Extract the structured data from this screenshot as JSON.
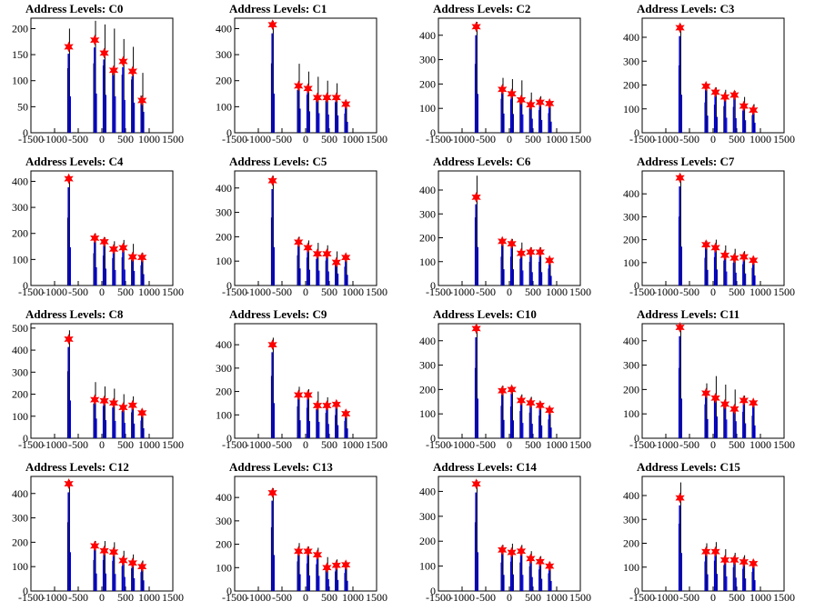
{
  "chart_data": [
    {
      "type": "histogram",
      "title": "Address Levels: C0",
      "xlim": [
        -1500,
        1500
      ],
      "xticks": [
        -1500,
        -1000,
        -500,
        0,
        500,
        1000,
        1500
      ],
      "ylim": [
        0,
        220
      ],
      "yticks": [
        0,
        50,
        100,
        150,
        200
      ],
      "peaks": [
        {
          "x": -700,
          "y": 200,
          "fit": 165
        },
        {
          "x": -150,
          "y": 215,
          "fit": 178
        },
        {
          "x": 50,
          "y": 208,
          "fit": 153
        },
        {
          "x": 250,
          "y": 200,
          "fit": 120
        },
        {
          "x": 450,
          "y": 180,
          "fit": 137
        },
        {
          "x": 650,
          "y": 165,
          "fit": 118
        },
        {
          "x": 850,
          "y": 115,
          "fit": 62
        }
      ]
    },
    {
      "type": "histogram",
      "title": "Address Levels: C1",
      "xlim": [
        -1500,
        1500
      ],
      "xticks": [
        -1500,
        -1000,
        -500,
        0,
        500,
        1000,
        1500
      ],
      "ylim": [
        0,
        440
      ],
      "yticks": [
        0,
        100,
        200,
        300,
        400
      ],
      "peaks": [
        {
          "x": -700,
          "y": 430,
          "fit": 415
        },
        {
          "x": -150,
          "y": 265,
          "fit": 180
        },
        {
          "x": 50,
          "y": 235,
          "fit": 170
        },
        {
          "x": 250,
          "y": 215,
          "fit": 135
        },
        {
          "x": 450,
          "y": 200,
          "fit": 135
        },
        {
          "x": 650,
          "y": 190,
          "fit": 135
        },
        {
          "x": 850,
          "y": 120,
          "fit": 110
        }
      ]
    },
    {
      "type": "histogram",
      "title": "Address Levels: C2",
      "xlim": [
        -1500,
        1500
      ],
      "xticks": [
        -1500,
        -1000,
        -500,
        0,
        500,
        1000,
        1500
      ],
      "ylim": [
        0,
        470
      ],
      "yticks": [
        0,
        100,
        200,
        300,
        400
      ],
      "peaks": [
        {
          "x": -700,
          "y": 455,
          "fit": 435
        },
        {
          "x": -150,
          "y": 225,
          "fit": 178
        },
        {
          "x": 50,
          "y": 220,
          "fit": 160
        },
        {
          "x": 250,
          "y": 215,
          "fit": 135
        },
        {
          "x": 450,
          "y": 165,
          "fit": 115
        },
        {
          "x": 650,
          "y": 150,
          "fit": 125
        },
        {
          "x": 850,
          "y": 130,
          "fit": 120
        }
      ]
    },
    {
      "type": "histogram",
      "title": "Address Levels: C3",
      "xlim": [
        -1500,
        1500
      ],
      "xticks": [
        -1500,
        -1000,
        -500,
        0,
        500,
        1000,
        1500
      ],
      "ylim": [
        0,
        480
      ],
      "yticks": [
        0,
        100,
        200,
        300,
        400
      ],
      "peaks": [
        {
          "x": -700,
          "y": 455,
          "fit": 440
        },
        {
          "x": -150,
          "y": 205,
          "fit": 195
        },
        {
          "x": 50,
          "y": 190,
          "fit": 170
        },
        {
          "x": 250,
          "y": 180,
          "fit": 150
        },
        {
          "x": 450,
          "y": 175,
          "fit": 158
        },
        {
          "x": 650,
          "y": 150,
          "fit": 112
        },
        {
          "x": 850,
          "y": 120,
          "fit": 95
        }
      ]
    },
    {
      "type": "histogram",
      "title": "Address Levels: C4",
      "xlim": [
        -1500,
        1500
      ],
      "xticks": [
        -1500,
        -1000,
        -500,
        0,
        500,
        1000,
        1500
      ],
      "ylim": [
        0,
        440
      ],
      "yticks": [
        0,
        100,
        200,
        300,
        400
      ],
      "peaks": [
        {
          "x": -700,
          "y": 420,
          "fit": 410
        },
        {
          "x": -150,
          "y": 200,
          "fit": 182
        },
        {
          "x": 50,
          "y": 185,
          "fit": 168
        },
        {
          "x": 250,
          "y": 170,
          "fit": 140
        },
        {
          "x": 450,
          "y": 175,
          "fit": 145
        },
        {
          "x": 650,
          "y": 160,
          "fit": 110
        },
        {
          "x": 850,
          "y": 125,
          "fit": 108
        }
      ]
    },
    {
      "type": "histogram",
      "title": "Address Levels: C5",
      "xlim": [
        -1500,
        1500
      ],
      "xticks": [
        -1500,
        -1000,
        -500,
        0,
        500,
        1000,
        1500
      ],
      "ylim": [
        0,
        470
      ],
      "yticks": [
        0,
        100,
        200,
        300,
        400
      ],
      "peaks": [
        {
          "x": -700,
          "y": 450,
          "fit": 430
        },
        {
          "x": -150,
          "y": 200,
          "fit": 178
        },
        {
          "x": 50,
          "y": 185,
          "fit": 155
        },
        {
          "x": 250,
          "y": 175,
          "fit": 130
        },
        {
          "x": 450,
          "y": 165,
          "fit": 130
        },
        {
          "x": 650,
          "y": 140,
          "fit": 95
        },
        {
          "x": 850,
          "y": 125,
          "fit": 115
        }
      ]
    },
    {
      "type": "histogram",
      "title": "Address Levels: C6",
      "xlim": [
        -1500,
        1500
      ],
      "xticks": [
        -1500,
        -1000,
        -500,
        0,
        500,
        1000,
        1500
      ],
      "ylim": [
        0,
        480
      ],
      "yticks": [
        0,
        100,
        200,
        300,
        400
      ],
      "peaks": [
        {
          "x": -700,
          "y": 460,
          "fit": 370
        },
        {
          "x": -150,
          "y": 195,
          "fit": 185
        },
        {
          "x": 50,
          "y": 195,
          "fit": 175
        },
        {
          "x": 250,
          "y": 180,
          "fit": 135
        },
        {
          "x": 450,
          "y": 160,
          "fit": 140
        },
        {
          "x": 650,
          "y": 160,
          "fit": 140
        },
        {
          "x": 850,
          "y": 115,
          "fit": 105
        }
      ]
    },
    {
      "type": "histogram",
      "title": "Address Levels: C7",
      "xlim": [
        -1500,
        1500
      ],
      "xticks": [
        -1500,
        -1000,
        -500,
        0,
        500,
        1000,
        1500
      ],
      "ylim": [
        0,
        500
      ],
      "yticks": [
        0,
        100,
        200,
        300,
        400
      ],
      "peaks": [
        {
          "x": -700,
          "y": 485,
          "fit": 470
        },
        {
          "x": -150,
          "y": 195,
          "fit": 178
        },
        {
          "x": 50,
          "y": 200,
          "fit": 165
        },
        {
          "x": 250,
          "y": 175,
          "fit": 132
        },
        {
          "x": 450,
          "y": 160,
          "fit": 120
        },
        {
          "x": 650,
          "y": 150,
          "fit": 125
        },
        {
          "x": 850,
          "y": 125,
          "fit": 110
        }
      ]
    },
    {
      "type": "histogram",
      "title": "Address Levels: C8",
      "xlim": [
        -1500,
        1500
      ],
      "xticks": [
        -1500,
        -1000,
        -500,
        0,
        500,
        1000,
        1500
      ],
      "ylim": [
        0,
        520
      ],
      "yticks": [
        0,
        100,
        200,
        300,
        400,
        500
      ],
      "peaks": [
        {
          "x": -700,
          "y": 490,
          "fit": 450
        },
        {
          "x": -150,
          "y": 255,
          "fit": 175
        },
        {
          "x": 50,
          "y": 235,
          "fit": 170
        },
        {
          "x": 250,
          "y": 225,
          "fit": 160
        },
        {
          "x": 450,
          "y": 200,
          "fit": 140
        },
        {
          "x": 650,
          "y": 190,
          "fit": 150
        },
        {
          "x": 850,
          "y": 130,
          "fit": 115
        }
      ]
    },
    {
      "type": "histogram",
      "title": "Address Levels: C9",
      "xlim": [
        -1500,
        1500
      ],
      "xticks": [
        -1500,
        -1000,
        -500,
        0,
        500,
        1000,
        1500
      ],
      "ylim": [
        0,
        490
      ],
      "yticks": [
        0,
        100,
        200,
        300,
        400
      ],
      "peaks": [
        {
          "x": -700,
          "y": 430,
          "fit": 400
        },
        {
          "x": -150,
          "y": 220,
          "fit": 185
        },
        {
          "x": 50,
          "y": 210,
          "fit": 185
        },
        {
          "x": 250,
          "y": 200,
          "fit": 140
        },
        {
          "x": 450,
          "y": 175,
          "fit": 140
        },
        {
          "x": 650,
          "y": 160,
          "fit": 145
        },
        {
          "x": 850,
          "y": 120,
          "fit": 105
        }
      ]
    },
    {
      "type": "histogram",
      "title": "Address Levels: C10",
      "xlim": [
        -1500,
        1500
      ],
      "xticks": [
        -1500,
        -1000,
        -500,
        0,
        500,
        1000,
        1500
      ],
      "ylim": [
        0,
        470
      ],
      "yticks": [
        0,
        100,
        200,
        300,
        400
      ],
      "peaks": [
        {
          "x": -700,
          "y": 465,
          "fit": 450
        },
        {
          "x": -150,
          "y": 215,
          "fit": 195
        },
        {
          "x": 50,
          "y": 210,
          "fit": 200
        },
        {
          "x": 250,
          "y": 180,
          "fit": 155
        },
        {
          "x": 450,
          "y": 170,
          "fit": 145
        },
        {
          "x": 650,
          "y": 150,
          "fit": 135
        },
        {
          "x": 850,
          "y": 125,
          "fit": 115
        }
      ]
    },
    {
      "type": "histogram",
      "title": "Address Levels: C11",
      "xlim": [
        -1500,
        1500
      ],
      "xticks": [
        -1500,
        -1000,
        -500,
        0,
        500,
        1000,
        1500
      ],
      "ylim": [
        0,
        470
      ],
      "yticks": [
        0,
        100,
        200,
        300,
        400
      ],
      "peaks": [
        {
          "x": -700,
          "y": 465,
          "fit": 455
        },
        {
          "x": -150,
          "y": 225,
          "fit": 185
        },
        {
          "x": 50,
          "y": 255,
          "fit": 165
        },
        {
          "x": 250,
          "y": 220,
          "fit": 140
        },
        {
          "x": 450,
          "y": 200,
          "fit": 120
        },
        {
          "x": 650,
          "y": 175,
          "fit": 155
        },
        {
          "x": 850,
          "y": 150,
          "fit": 145
        }
      ]
    },
    {
      "type": "histogram",
      "title": "Address Levels: C12",
      "xlim": [
        -1500,
        1500
      ],
      "xticks": [
        -1500,
        -1000,
        -500,
        0,
        500,
        1000,
        1500
      ],
      "ylim": [
        0,
        470
      ],
      "yticks": [
        0,
        100,
        200,
        300,
        400
      ],
      "peaks": [
        {
          "x": -700,
          "y": 455,
          "fit": 440
        },
        {
          "x": -150,
          "y": 205,
          "fit": 185
        },
        {
          "x": 50,
          "y": 205,
          "fit": 165
        },
        {
          "x": 250,
          "y": 200,
          "fit": 160
        },
        {
          "x": 450,
          "y": 165,
          "fit": 125
        },
        {
          "x": 650,
          "y": 150,
          "fit": 115
        },
        {
          "x": 850,
          "y": 125,
          "fit": 100
        }
      ]
    },
    {
      "type": "histogram",
      "title": "Address Levels: C13",
      "xlim": [
        -1500,
        1500
      ],
      "xticks": [
        -1500,
        -1000,
        -500,
        0,
        500,
        1000,
        1500
      ],
      "ylim": [
        0,
        490
      ],
      "yticks": [
        0,
        100,
        200,
        300,
        400
      ],
      "peaks": [
        {
          "x": -700,
          "y": 440,
          "fit": 420
        },
        {
          "x": -150,
          "y": 205,
          "fit": 170
        },
        {
          "x": 50,
          "y": 190,
          "fit": 170
        },
        {
          "x": 250,
          "y": 185,
          "fit": 155
        },
        {
          "x": 450,
          "y": 145,
          "fit": 100
        },
        {
          "x": 650,
          "y": 135,
          "fit": 110
        },
        {
          "x": 850,
          "y": 125,
          "fit": 112
        }
      ]
    },
    {
      "type": "histogram",
      "title": "Address Levels: C14",
      "xlim": [
        -1500,
        1500
      ],
      "xticks": [
        -1500,
        -1000,
        -500,
        0,
        500,
        1000,
        1500
      ],
      "ylim": [
        0,
        460
      ],
      "yticks": [
        0,
        100,
        200,
        300,
        400
      ],
      "peaks": [
        {
          "x": -700,
          "y": 445,
          "fit": 430
        },
        {
          "x": -150,
          "y": 185,
          "fit": 165
        },
        {
          "x": 50,
          "y": 190,
          "fit": 155
        },
        {
          "x": 250,
          "y": 185,
          "fit": 160
        },
        {
          "x": 450,
          "y": 160,
          "fit": 130
        },
        {
          "x": 650,
          "y": 140,
          "fit": 118
        },
        {
          "x": 850,
          "y": 115,
          "fit": 100
        }
      ]
    },
    {
      "type": "histogram",
      "title": "Address Levels: C15",
      "xlim": [
        -1500,
        1500
      ],
      "xticks": [
        -1500,
        -1000,
        -500,
        0,
        500,
        1000,
        1500
      ],
      "ylim": [
        0,
        480
      ],
      "yticks": [
        0,
        100,
        200,
        300,
        400
      ],
      "peaks": [
        {
          "x": -700,
          "y": 455,
          "fit": 390
        },
        {
          "x": -150,
          "y": 200,
          "fit": 165
        },
        {
          "x": 50,
          "y": 205,
          "fit": 165
        },
        {
          "x": 250,
          "y": 175,
          "fit": 130
        },
        {
          "x": 450,
          "y": 160,
          "fit": 130
        },
        {
          "x": 650,
          "y": 150,
          "fit": 122
        },
        {
          "x": 850,
          "y": 130,
          "fit": 115
        }
      ]
    }
  ],
  "style": {
    "hist_color": "#0000ff",
    "raw_color": "#000000",
    "marker_color": "#ff0000",
    "axis_color": "#000000",
    "background": "#ffffff"
  }
}
